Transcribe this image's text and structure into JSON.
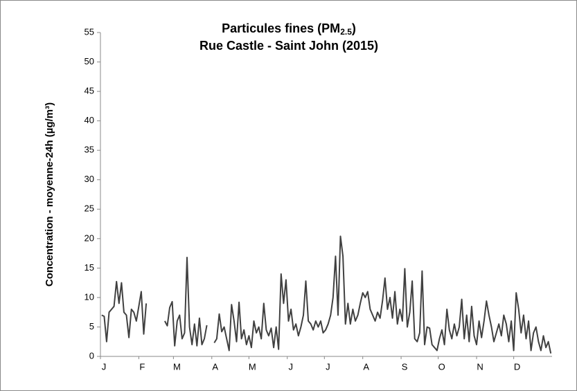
{
  "chart_data": {
    "type": "line",
    "title": [
      "Particules fines (PM",
      "2.5",
      ")"
    ],
    "subtitle": "Rue Castle - Saint John (2015)",
    "y_label": "Concentration - moyenne-24h (µg/m³)",
    "x": [
      1,
      3,
      5,
      7,
      9,
      11,
      13,
      15,
      17,
      19,
      21,
      23,
      25,
      27,
      29,
      31,
      33,
      35,
      37,
      45,
      52,
      54,
      56,
      58,
      60,
      62,
      64,
      66,
      68,
      70,
      72,
      74,
      76,
      78,
      80,
      82,
      84,
      86,
      89,
      92,
      94,
      96,
      98,
      100,
      102,
      104,
      106,
      108,
      110,
      112,
      114,
      116,
      118,
      120,
      122,
      124,
      126,
      128,
      130,
      132,
      134,
      136,
      138,
      140,
      142,
      144,
      146,
      148,
      150,
      152,
      154,
      156,
      158,
      160,
      162,
      164,
      166,
      168,
      170,
      172,
      174,
      176,
      178,
      180,
      182,
      184,
      186,
      188,
      190,
      192,
      194,
      196,
      198,
      200,
      202,
      204,
      206,
      208,
      210,
      212,
      214,
      216,
      218,
      220,
      222,
      224,
      226,
      228,
      230,
      232,
      234,
      236,
      238,
      240,
      242,
      244,
      246,
      248,
      250,
      252,
      254,
      256,
      258,
      260,
      262,
      264,
      266,
      268,
      270,
      272,
      274,
      276,
      278,
      280,
      282,
      284,
      286,
      288,
      290,
      292,
      294,
      296,
      298,
      300,
      302,
      304,
      306,
      308,
      310,
      312,
      314,
      316,
      318,
      320,
      322,
      324,
      326,
      328,
      330,
      332,
      334,
      336,
      338,
      340,
      342,
      344,
      346,
      348,
      350,
      352,
      354,
      356,
      358,
      360,
      362,
      364
    ],
    "series": [
      {
        "color": "#404040",
        "values": [
          7,
          6.8,
          2.5,
          7.5,
          8,
          8.5,
          12.7,
          9,
          12.5,
          7.5,
          7,
          3.2,
          8,
          7.5,
          6,
          8.5,
          11,
          3.8,
          9,
          null,
          6,
          5.2,
          8.3,
          9.3,
          1.8,
          6,
          7,
          3,
          4,
          16.8,
          5,
          2,
          5.5,
          1.8,
          6.5,
          2,
          3,
          5.3,
          null,
          2.3,
          3,
          7.2,
          4.2,
          5,
          3,
          1,
          8.8,
          6,
          2.5,
          9.2,
          3,
          4.5,
          2,
          3.5,
          1.5,
          6,
          4,
          5,
          3,
          9,
          4.5,
          3.5,
          4.8,
          1.5,
          5,
          1.2,
          14,
          9,
          13,
          6,
          8,
          4.5,
          5.5,
          3.5,
          5,
          7,
          12.8,
          6,
          5.5,
          4.5,
          6,
          5,
          6,
          4,
          4.5,
          5.5,
          7,
          10,
          17,
          7,
          20.4,
          17,
          5.5,
          9,
          5.5,
          8,
          6,
          7,
          9,
          10.8,
          10,
          11,
          8,
          7,
          6,
          7.5,
          6.5,
          9.5,
          13.3,
          8,
          10,
          6.5,
          11,
          5.5,
          8,
          6,
          14.9,
          5,
          7.5,
          12.8,
          3,
          2.5,
          4,
          14.5,
          2,
          5,
          4.8,
          2,
          1.5,
          1,
          3,
          4.5,
          2,
          8,
          4.5,
          3,
          5.5,
          3.5,
          5,
          9.7,
          3,
          7,
          2.5,
          8.5,
          3.5,
          2,
          6,
          3.2,
          6,
          9.4,
          7,
          5,
          2.5,
          4,
          5.5,
          3.5,
          7,
          5.5,
          2.5,
          6,
          1,
          10.8,
          8,
          4,
          7,
          3,
          6,
          1,
          4,
          5,
          2.5,
          1,
          3.5,
          1.5,
          2.5,
          0.5
        ]
      }
    ],
    "xlim": [
      0,
      365
    ],
    "xticks": [
      {
        "value": 0,
        "label": "J"
      },
      {
        "value": 31,
        "label": "F"
      },
      {
        "value": 59,
        "label": "M"
      },
      {
        "value": 90,
        "label": "A"
      },
      {
        "value": 120,
        "label": "M"
      },
      {
        "value": 151,
        "label": "J"
      },
      {
        "value": 181,
        "label": "J"
      },
      {
        "value": 212,
        "label": "A"
      },
      {
        "value": 243,
        "label": "S"
      },
      {
        "value": 273,
        "label": "O"
      },
      {
        "value": 304,
        "label": "N"
      },
      {
        "value": 334,
        "label": "D"
      }
    ],
    "ylim": [
      0,
      55
    ],
    "yticks": [
      0,
      5,
      10,
      15,
      20,
      25,
      30,
      35,
      40,
      45,
      50,
      55
    ],
    "grid": false
  }
}
